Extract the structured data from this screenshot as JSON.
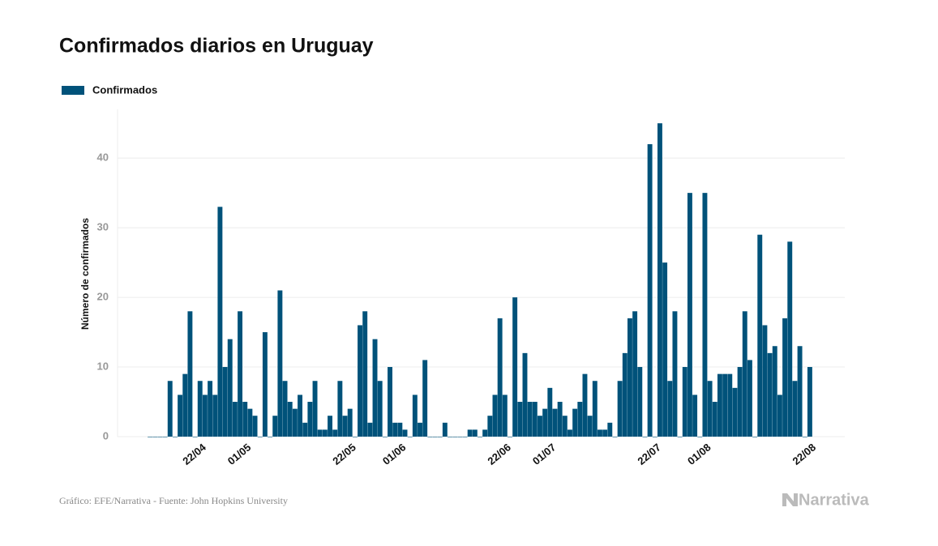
{
  "chart_data": {
    "type": "bar",
    "title": "Confirmados diarios en Uruguay",
    "ylabel": "Número de confirmados",
    "source": "Gráfico: EFE/Narrativa - Fuente: John Hopkins University",
    "brand": "Narrativa",
    "categories": [
      null,
      null,
      null,
      null,
      null,
      null,
      null,
      null,
      null,
      null,
      "22/04",
      null,
      null,
      null,
      null,
      null,
      null,
      null,
      null,
      "01/05",
      null,
      null,
      null,
      null,
      null,
      null,
      null,
      null,
      null,
      null,
      null,
      null,
      null,
      null,
      null,
      null,
      null,
      null,
      null,
      null,
      "22/05",
      null,
      null,
      null,
      null,
      null,
      null,
      null,
      null,
      null,
      "01/06",
      null,
      null,
      null,
      null,
      null,
      null,
      null,
      null,
      null,
      null,
      null,
      null,
      null,
      null,
      null,
      null,
      null,
      null,
      null,
      null,
      "22/06",
      null,
      null,
      null,
      null,
      null,
      null,
      null,
      null,
      "01/07",
      null,
      null,
      null,
      null,
      null,
      null,
      null,
      null,
      null,
      null,
      null,
      null,
      null,
      null,
      null,
      null,
      null,
      null,
      null,
      null,
      "22/07",
      null,
      null,
      null,
      null,
      null,
      null,
      null,
      null,
      null,
      "01/08",
      null,
      null,
      null,
      null,
      null,
      null,
      null,
      null,
      null,
      null,
      null,
      null,
      null,
      null,
      null,
      null,
      null,
      null,
      null,
      null,
      "22/08"
    ],
    "series": [
      {
        "name": "Confirmados",
        "color": "#00527a",
        "values": [
          0,
          0,
          0,
          0,
          8,
          0,
          6,
          9,
          18,
          0,
          8,
          6,
          8,
          6,
          33,
          10,
          14,
          5,
          18,
          5,
          4,
          3,
          0,
          15,
          0,
          3,
          21,
          8,
          5,
          4,
          6,
          2,
          5,
          8,
          1,
          1,
          3,
          1,
          8,
          3,
          4,
          0,
          16,
          18,
          2,
          14,
          8,
          0,
          10,
          2,
          2,
          1,
          0,
          6,
          2,
          11,
          0,
          0,
          0,
          2,
          0,
          0,
          0,
          0,
          1,
          1,
          0,
          1,
          3,
          6,
          17,
          6,
          0,
          20,
          5,
          12,
          5,
          5,
          3,
          4,
          7,
          4,
          5,
          3,
          1,
          4,
          5,
          9,
          3,
          8,
          1,
          1,
          2,
          0,
          8,
          12,
          17,
          18,
          10,
          0,
          42,
          0,
          45,
          25,
          8,
          18,
          0,
          10,
          35,
          6,
          0,
          35,
          8,
          5,
          9,
          9,
          9,
          7,
          10,
          18,
          11,
          0,
          29,
          16,
          12,
          13,
          6,
          17,
          28,
          8,
          13,
          0,
          10
        ]
      }
    ],
    "ylim": [
      0,
      47
    ],
    "yticks": [
      0,
      10,
      20,
      30,
      40
    ],
    "grid": true,
    "legend": "top-left"
  }
}
